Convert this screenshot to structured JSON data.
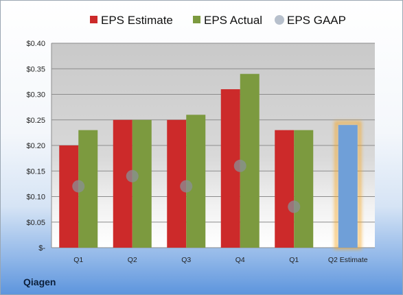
{
  "company": "Qiagen",
  "chart_data": {
    "type": "bar",
    "title": "",
    "xlabel": "",
    "ylabel": "",
    "categories": [
      "Q1",
      "Q2",
      "Q3",
      "Q4",
      "Q1",
      "Q2 Estimate"
    ],
    "ylim": [
      0,
      0.4
    ],
    "yticks": [
      0,
      0.05,
      0.1,
      0.15,
      0.2,
      0.25,
      0.3,
      0.35,
      0.4
    ],
    "ytick_labels": [
      "$-",
      "$0.05",
      "$0.10",
      "$0.15",
      "$0.20",
      "$0.25",
      "$0.30",
      "$0.35",
      "$0.40"
    ],
    "grid": true,
    "legend_position": "top",
    "series": [
      {
        "name": "EPS Estimate",
        "type": "bar",
        "color": "#cc2a2a",
        "values": [
          0.2,
          0.25,
          0.25,
          0.31,
          0.23,
          null
        ]
      },
      {
        "name": "EPS Actual",
        "type": "bar",
        "color": "#7c9a3f",
        "values": [
          0.23,
          0.25,
          0.26,
          0.34,
          0.23,
          null
        ]
      },
      {
        "name": "EPS GAAP",
        "type": "scatter",
        "color": "#9aa3ad",
        "values": [
          0.12,
          0.14,
          0.12,
          0.16,
          0.08,
          null
        ]
      }
    ],
    "estimate_bar": {
      "category_index": 5,
      "value": 0.24,
      "color": "#6f9fd8",
      "highlight": "#f5a623"
    }
  }
}
